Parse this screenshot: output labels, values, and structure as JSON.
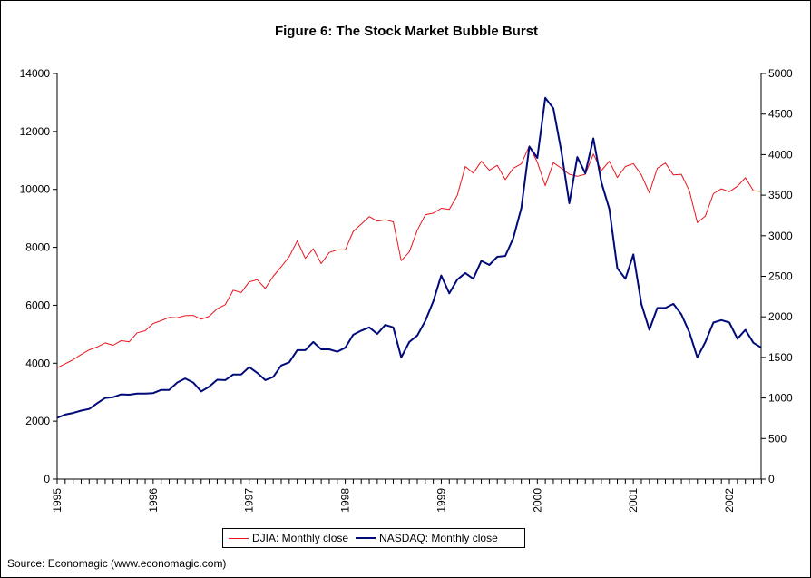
{
  "chart_data": {
    "type": "line",
    "title": "Figure 6: The Stock Market Bubble Burst",
    "source": "Source:  Economagic (www.economagic.com)",
    "x_ticks": [
      "1995",
      "1996",
      "1997",
      "1998",
      "1999",
      "2000",
      "2001",
      "2002"
    ],
    "xlim": [
      1995.0,
      2002.33
    ],
    "y_left": {
      "ylim": [
        0,
        14000
      ],
      "ticks": [
        "0",
        "2000",
        "4000",
        "6000",
        "8000",
        "10000",
        "12000",
        "14000"
      ]
    },
    "y_right": {
      "ylim": [
        0,
        5000
      ],
      "ticks": [
        "0",
        "500",
        "1000",
        "1500",
        "2000",
        "2500",
        "3000",
        "3500",
        "4000",
        "4500",
        "5000"
      ]
    },
    "grid": false,
    "legend_position": "bottom",
    "series": [
      {
        "name": "DJIA: Monthly close",
        "axis": "left",
        "color": "#e8141e",
        "values": [
          3840,
          3980,
          4120,
          4300,
          4460,
          4560,
          4700,
          4620,
          4780,
          4740,
          5050,
          5120,
          5370,
          5470,
          5580,
          5570,
          5640,
          5650,
          5520,
          5620,
          5880,
          6020,
          6520,
          6440,
          6810,
          6880,
          6580,
          7000,
          7330,
          7680,
          8220,
          7620,
          7950,
          7440,
          7820,
          7910,
          7910,
          8550,
          8800,
          9060,
          8900,
          8950,
          8880,
          7540,
          7840,
          8590,
          9120,
          9180,
          9350,
          9310,
          9790,
          10790,
          10560,
          10970,
          10660,
          10830,
          10340,
          10730,
          10880,
          11500,
          10940,
          10130,
          10920,
          10730,
          10520,
          10450,
          10520,
          11220,
          10650,
          10970,
          10410,
          10790,
          10890,
          10500,
          9880,
          10730,
          10910,
          10500,
          10520,
          9950,
          8850,
          9080,
          9850,
          10020,
          9920,
          10110,
          10400,
          9950,
          9930
        ],
        "start": 1995.0,
        "step": 0.08333
      },
      {
        "name": "NASDAQ: Monthly close",
        "axis": "right",
        "color": "#000a78",
        "values": [
          755,
          795,
          815,
          845,
          865,
          935,
          1000,
          1010,
          1045,
          1040,
          1055,
          1055,
          1060,
          1100,
          1100,
          1190,
          1240,
          1190,
          1080,
          1140,
          1225,
          1220,
          1290,
          1290,
          1380,
          1310,
          1220,
          1260,
          1400,
          1440,
          1590,
          1590,
          1690,
          1600,
          1600,
          1570,
          1620,
          1780,
          1830,
          1870,
          1790,
          1900,
          1870,
          1500,
          1690,
          1770,
          1950,
          2190,
          2510,
          2290,
          2460,
          2540,
          2470,
          2690,
          2640,
          2740,
          2750,
          2970,
          3340,
          4100,
          3960,
          4700,
          4570,
          4040,
          3400,
          3970,
          3770,
          4200,
          3660,
          3330,
          2600,
          2470,
          2770,
          2160,
          1840,
          2110,
          2110,
          2160,
          2030,
          1810,
          1500,
          1690,
          1930,
          1960,
          1930,
          1730,
          1840,
          1680,
          1620
        ],
        "start": 1995.0,
        "step": 0.08333
      }
    ]
  }
}
